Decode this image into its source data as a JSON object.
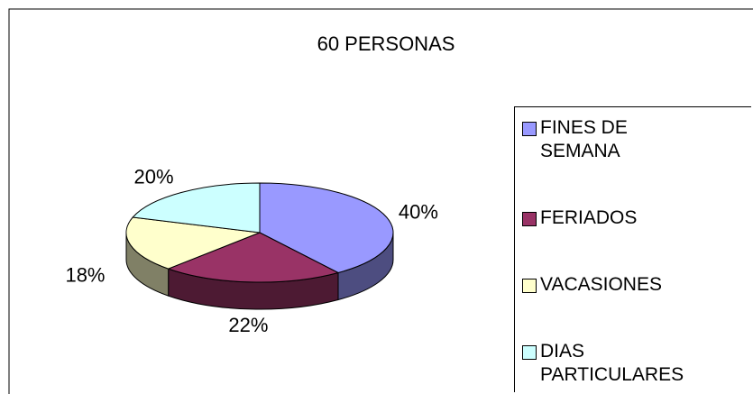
{
  "chart_data": {
    "type": "pie",
    "title": "60 PERSONAS",
    "categories": [
      "FINES DE SEMANA",
      "FERIADOS",
      "VACASIONES",
      "DIAS PARTICULARES"
    ],
    "values": [
      40,
      22,
      18,
      20
    ],
    "value_labels": [
      "40%",
      "22%",
      "18%",
      "20%"
    ],
    "colors": [
      "#9999ff",
      "#993366",
      "#ffffcc",
      "#ccffff"
    ],
    "legend": "right"
  }
}
